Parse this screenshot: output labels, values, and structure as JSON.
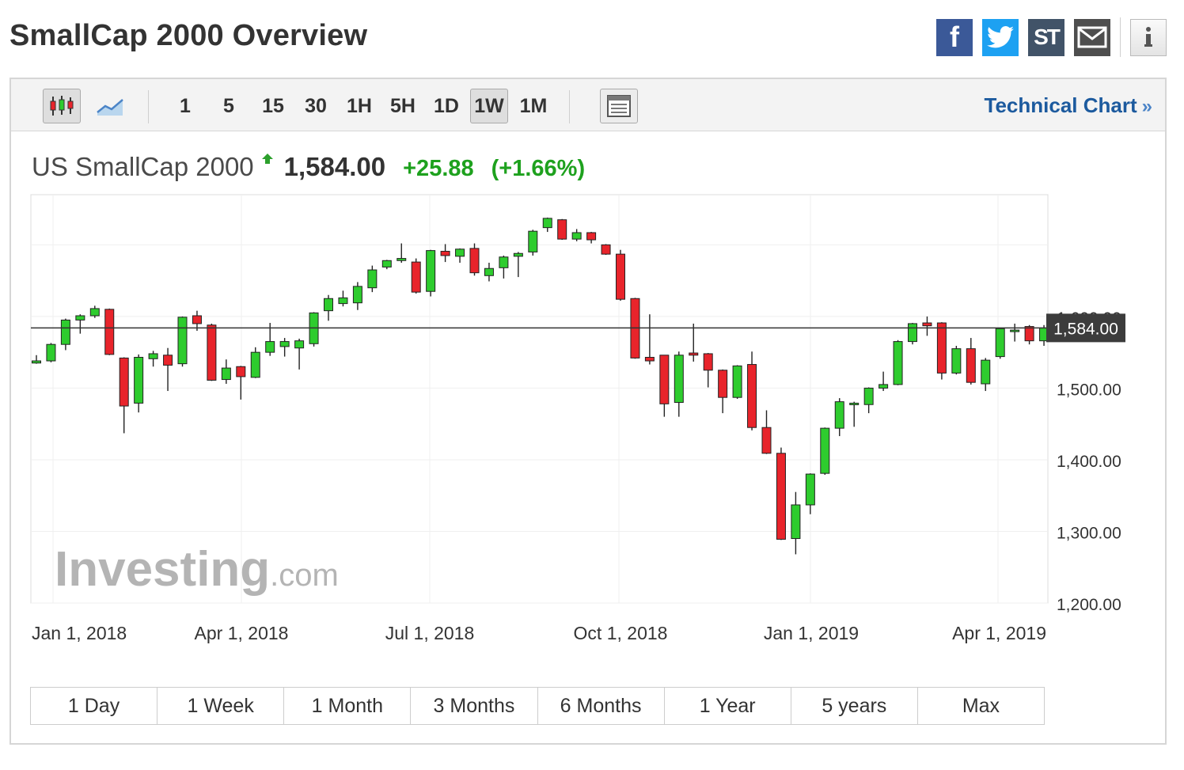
{
  "page": {
    "title": "SmallCap 2000 Overview"
  },
  "share": [
    {
      "name": "facebook-icon",
      "glyph": "f"
    },
    {
      "name": "twitter-icon",
      "glyph": ""
    },
    {
      "name": "stocktwits-icon",
      "glyph": "ST"
    },
    {
      "name": "email-icon",
      "glyph": ""
    }
  ],
  "toolbar": {
    "timeframes": [
      "1",
      "5",
      "15",
      "30",
      "1H",
      "5H",
      "1D",
      "1W",
      "1M"
    ],
    "active_timeframe": "1W",
    "technical_link": "Technical Chart",
    "technical_arrow": "»"
  },
  "quote": {
    "name": "US SmallCap 2000",
    "price": "1,584.00",
    "change": "+25.88",
    "change_pct": "(+1.66%)"
  },
  "ranges": [
    "1 Day",
    "1 Week",
    "1 Month",
    "3 Months",
    "6 Months",
    "1 Year",
    "5 years",
    "Max"
  ],
  "colors": {
    "up": "#2ecc2e",
    "down": "#e8242b",
    "up_text": "#1ea11e",
    "link": "#1c5a9e"
  },
  "chart_data": {
    "type": "candlestick",
    "interval": "weekly",
    "x_tick_labels": [
      "Jan 1, 2018",
      "Apr 1, 2018",
      "Jul 1, 2018",
      "Oct 1, 2018",
      "Jan 1, 2019",
      "Apr 1, 2019"
    ],
    "y_ticks": [
      1200,
      1300,
      1400,
      1500,
      1600
    ],
    "y_tick_labels": [
      "1,200.00",
      "1,300.00",
      "1,400.00",
      "1,500.00",
      "1,600.00"
    ],
    "ylim": [
      1200,
      1770
    ],
    "current_value": 1584.0,
    "current_label": "1,584.00",
    "watermark": "Investing.com",
    "grid": true,
    "candles": [
      {
        "o": 1535,
        "h": 1546,
        "l": 1534,
        "c": 1538
      },
      {
        "o": 1538,
        "h": 1563,
        "l": 1536,
        "c": 1561
      },
      {
        "o": 1561,
        "h": 1597,
        "l": 1553,
        "c": 1595
      },
      {
        "o": 1595,
        "h": 1603,
        "l": 1576,
        "c": 1601
      },
      {
        "o": 1601,
        "h": 1615,
        "l": 1598,
        "c": 1611
      },
      {
        "o": 1610,
        "h": 1611,
        "l": 1546,
        "c": 1547
      },
      {
        "o": 1542,
        "h": 1543,
        "l": 1437,
        "c": 1475
      },
      {
        "o": 1479,
        "h": 1547,
        "l": 1466,
        "c": 1543
      },
      {
        "o": 1541,
        "h": 1552,
        "l": 1530,
        "c": 1548
      },
      {
        "o": 1546,
        "h": 1556,
        "l": 1496,
        "c": 1532
      },
      {
        "o": 1534,
        "h": 1600,
        "l": 1530,
        "c": 1599
      },
      {
        "o": 1601,
        "h": 1608,
        "l": 1580,
        "c": 1590
      },
      {
        "o": 1588,
        "h": 1590,
        "l": 1510,
        "c": 1511
      },
      {
        "o": 1512,
        "h": 1540,
        "l": 1506,
        "c": 1528
      },
      {
        "o": 1530,
        "h": 1531,
        "l": 1484,
        "c": 1516
      },
      {
        "o": 1515,
        "h": 1557,
        "l": 1514,
        "c": 1550
      },
      {
        "o": 1550,
        "h": 1591,
        "l": 1545,
        "c": 1565
      },
      {
        "o": 1558,
        "h": 1570,
        "l": 1544,
        "c": 1565
      },
      {
        "o": 1556,
        "h": 1569,
        "l": 1526,
        "c": 1566
      },
      {
        "o": 1562,
        "h": 1606,
        "l": 1558,
        "c": 1605
      },
      {
        "o": 1608,
        "h": 1630,
        "l": 1594,
        "c": 1625
      },
      {
        "o": 1618,
        "h": 1636,
        "l": 1614,
        "c": 1626
      },
      {
        "o": 1619,
        "h": 1648,
        "l": 1609,
        "c": 1642
      },
      {
        "o": 1640,
        "h": 1671,
        "l": 1634,
        "c": 1665
      },
      {
        "o": 1669,
        "h": 1679,
        "l": 1666,
        "c": 1678
      },
      {
        "o": 1678,
        "h": 1702,
        "l": 1675,
        "c": 1681
      },
      {
        "o": 1676,
        "h": 1681,
        "l": 1632,
        "c": 1634
      },
      {
        "o": 1635,
        "h": 1693,
        "l": 1628,
        "c": 1692
      },
      {
        "o": 1691,
        "h": 1701,
        "l": 1676,
        "c": 1685
      },
      {
        "o": 1684,
        "h": 1695,
        "l": 1675,
        "c": 1694
      },
      {
        "o": 1695,
        "h": 1702,
        "l": 1657,
        "c": 1661
      },
      {
        "o": 1657,
        "h": 1675,
        "l": 1649,
        "c": 1667
      },
      {
        "o": 1668,
        "h": 1685,
        "l": 1653,
        "c": 1683
      },
      {
        "o": 1684,
        "h": 1690,
        "l": 1655,
        "c": 1688
      },
      {
        "o": 1690,
        "h": 1721,
        "l": 1685,
        "c": 1719
      },
      {
        "o": 1724,
        "h": 1738,
        "l": 1718,
        "c": 1737
      },
      {
        "o": 1735,
        "h": 1736,
        "l": 1707,
        "c": 1708
      },
      {
        "o": 1708,
        "h": 1722,
        "l": 1705,
        "c": 1717
      },
      {
        "o": 1717,
        "h": 1718,
        "l": 1702,
        "c": 1707
      },
      {
        "o": 1700,
        "h": 1701,
        "l": 1686,
        "c": 1687
      },
      {
        "o": 1687,
        "h": 1693,
        "l": 1622,
        "c": 1624
      },
      {
        "o": 1625,
        "h": 1626,
        "l": 1541,
        "c": 1542
      },
      {
        "o": 1543,
        "h": 1603,
        "l": 1533,
        "c": 1538
      },
      {
        "o": 1546,
        "h": 1546,
        "l": 1460,
        "c": 1478
      },
      {
        "o": 1480,
        "h": 1551,
        "l": 1460,
        "c": 1546
      },
      {
        "o": 1549,
        "h": 1590,
        "l": 1537,
        "c": 1546
      },
      {
        "o": 1548,
        "h": 1549,
        "l": 1501,
        "c": 1525
      },
      {
        "o": 1525,
        "h": 1526,
        "l": 1465,
        "c": 1487
      },
      {
        "o": 1487,
        "h": 1532,
        "l": 1485,
        "c": 1531
      },
      {
        "o": 1533,
        "h": 1551,
        "l": 1441,
        "c": 1445
      },
      {
        "o": 1445,
        "h": 1469,
        "l": 1408,
        "c": 1409
      },
      {
        "o": 1409,
        "h": 1417,
        "l": 1288,
        "c": 1289
      },
      {
        "o": 1290,
        "h": 1355,
        "l": 1268,
        "c": 1337
      },
      {
        "o": 1337,
        "h": 1381,
        "l": 1324,
        "c": 1380
      },
      {
        "o": 1381,
        "h": 1445,
        "l": 1379,
        "c": 1444
      },
      {
        "o": 1444,
        "h": 1486,
        "l": 1433,
        "c": 1481
      },
      {
        "o": 1478,
        "h": 1481,
        "l": 1446,
        "c": 1479
      },
      {
        "o": 1477,
        "h": 1501,
        "l": 1465,
        "c": 1500
      },
      {
        "o": 1500,
        "h": 1523,
        "l": 1496,
        "c": 1505
      },
      {
        "o": 1505,
        "h": 1567,
        "l": 1504,
        "c": 1565
      },
      {
        "o": 1565,
        "h": 1591,
        "l": 1561,
        "c": 1590
      },
      {
        "o": 1591,
        "h": 1600,
        "l": 1573,
        "c": 1587
      },
      {
        "o": 1591,
        "h": 1592,
        "l": 1512,
        "c": 1521
      },
      {
        "o": 1521,
        "h": 1559,
        "l": 1519,
        "c": 1555
      },
      {
        "o": 1555,
        "h": 1570,
        "l": 1505,
        "c": 1508
      },
      {
        "o": 1506,
        "h": 1542,
        "l": 1496,
        "c": 1539
      },
      {
        "o": 1544,
        "h": 1584,
        "l": 1541,
        "c": 1583
      },
      {
        "o": 1579,
        "h": 1590,
        "l": 1565,
        "c": 1581
      },
      {
        "o": 1586,
        "h": 1588,
        "l": 1561,
        "c": 1566
      },
      {
        "o": 1566,
        "h": 1588,
        "l": 1559,
        "c": 1584
      }
    ]
  }
}
